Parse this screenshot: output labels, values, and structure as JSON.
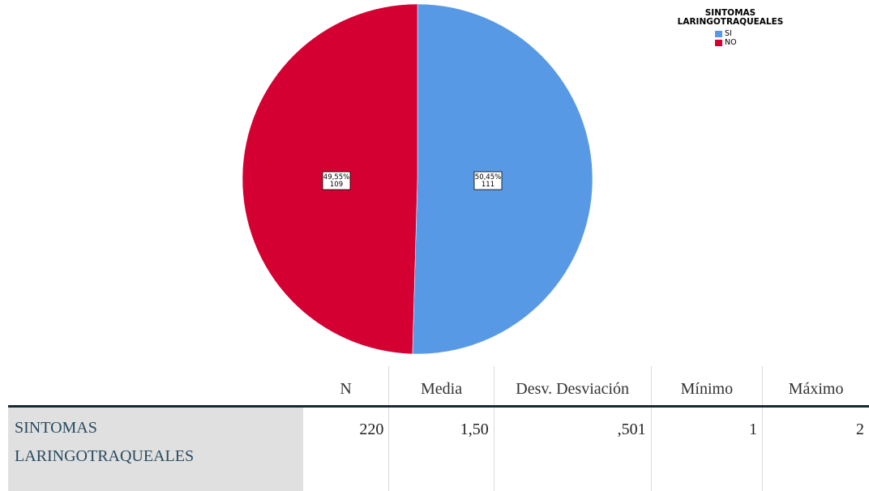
{
  "chart_data": {
    "type": "pie",
    "title": "",
    "legend": {
      "title": "SINTOMAS LARINGOTRAQUEALES",
      "title_lines": [
        "SINTOMAS",
        "LARINGOTRAQUEALES"
      ],
      "placement": "top-right"
    },
    "slices": [
      {
        "label": "SI",
        "value": 111,
        "percent": "50,45%",
        "color": "#5899e6"
      },
      {
        "label": "NO",
        "value": 109,
        "percent": "49,55%",
        "color": "#d50032"
      }
    ]
  },
  "table": {
    "headers": [
      "",
      "N",
      "Media",
      "Desv. Desviación",
      "Mínimo",
      "Máximo"
    ],
    "rows": [
      {
        "label": "SINTOMAS LARINGOTRAQUEALES",
        "label_lines": [
          "SINTOMAS",
          "LARINGOTRAQUEALES"
        ],
        "values": [
          "220",
          "1,50",
          ",501",
          "1",
          "2"
        ]
      }
    ]
  }
}
